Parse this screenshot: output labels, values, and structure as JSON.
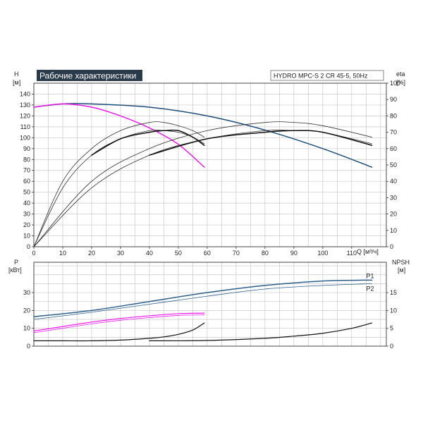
{
  "title": "Рабочие характеристики",
  "model": "HYDRO MPC-S 2 CR 45-5, 50Hz",
  "colors": {
    "head": "#1f4e79",
    "eff": "#333333",
    "power": "#2e5f8a",
    "magenta": "#e81ee8",
    "npsh": "#111111",
    "title_bg": "#2b3a4a"
  },
  "chart_data": [
    {
      "type": "line",
      "name": "top",
      "xlabel": "Q [м³/ч]",
      "ylabel": "H [м]",
      "y2label": "eta [%]",
      "left_unit_label": "H",
      "left_unit_sub": "[м]",
      "right_unit_label": "eta",
      "right_unit_sub": "[%]",
      "x_axis_label": "Q [м³/ч]",
      "xlim": [
        0,
        122
      ],
      "ylim": [
        0,
        150
      ],
      "y2lim": [
        0,
        100
      ],
      "xticks": [
        0,
        10,
        20,
        30,
        40,
        50,
        60,
        70,
        80,
        90,
        100,
        110
      ],
      "yticks": [
        0,
        10,
        20,
        30,
        40,
        50,
        60,
        70,
        80,
        90,
        100,
        110,
        120,
        130,
        140
      ],
      "y2ticks": [
        0,
        10,
        20,
        30,
        40,
        50,
        60,
        70,
        80,
        90,
        100
      ],
      "grid": true,
      "series": [
        {
          "key": "head2",
          "axis": "left",
          "color": "#1f4e79",
          "width": 1.5,
          "x": [
            0,
            10,
            20,
            40,
            60,
            80,
            100,
            117
          ],
          "y": [
            128,
            131,
            131,
            128,
            120,
            107,
            90,
            73
          ]
        },
        {
          "key": "head1",
          "axis": "left",
          "color": "#e81ee8",
          "width": 1.5,
          "x": [
            0,
            10,
            20,
            30,
            40,
            50,
            59
          ],
          "y": [
            128,
            131,
            128,
            120,
            109,
            94,
            73
          ]
        },
        {
          "key": "eff1a",
          "axis": "right",
          "color": "#333333",
          "width": 0.8,
          "x": [
            0,
            10,
            20,
            30,
            40,
            45,
            50,
            55,
            59
          ],
          "y": [
            0,
            40,
            60,
            71,
            76,
            76,
            74,
            71,
            67
          ]
        },
        {
          "key": "eff1b",
          "axis": "right",
          "color": "#333333",
          "width": 0.8,
          "x": [
            0,
            10,
            20,
            30,
            40,
            45,
            50,
            55,
            59
          ],
          "y": [
            0,
            36,
            56,
            66,
            71,
            71,
            70,
            67,
            63
          ]
        },
        {
          "key": "eff1c",
          "axis": "right",
          "color": "#111111",
          "width": 1.5,
          "x": [
            20,
            30,
            40,
            45,
            50,
            55,
            59
          ],
          "y": [
            56,
            66,
            70,
            71,
            71,
            67,
            62
          ]
        },
        {
          "key": "eff2a",
          "axis": "right",
          "color": "#333333",
          "width": 0.8,
          "x": [
            0,
            20,
            40,
            60,
            80,
            90,
            100,
            117
          ],
          "y": [
            0,
            40,
            60,
            71,
            76,
            76,
            74,
            67
          ]
        },
        {
          "key": "eff2b",
          "axis": "right",
          "color": "#333333",
          "width": 0.8,
          "x": [
            0,
            20,
            40,
            60,
            80,
            90,
            100,
            117
          ],
          "y": [
            0,
            36,
            56,
            66,
            71,
            71,
            70,
            63
          ]
        },
        {
          "key": "eff2c",
          "axis": "right",
          "color": "#111111",
          "width": 1.5,
          "x": [
            40,
            60,
            80,
            90,
            100,
            117
          ],
          "y": [
            56,
            66,
            70,
            71,
            70,
            62
          ]
        }
      ]
    },
    {
      "type": "line",
      "name": "bottom",
      "left_unit_label": "P",
      "left_unit_sub": "[кВт]",
      "right_unit_label": "NPSH",
      "right_unit_sub": "[м]",
      "xlim": [
        0,
        122
      ],
      "ylim": [
        0,
        47
      ],
      "y2lim": [
        0,
        23.5
      ],
      "yticks": [
        0,
        10,
        20,
        30
      ],
      "y2ticks": [
        0,
        5,
        10,
        15
      ],
      "grid": true,
      "series": [
        {
          "key": "p1",
          "axis": "left",
          "color": "#2e5f8a",
          "width": 1.5,
          "label": "P1",
          "x": [
            0,
            20,
            40,
            60,
            80,
            100,
            117
          ],
          "y": [
            16.5,
            20,
            25,
            30,
            34,
            36.5,
            37
          ]
        },
        {
          "key": "p2",
          "axis": "left",
          "color": "#2e5f8a",
          "width": 0.8,
          "label": "P2",
          "x": [
            0,
            20,
            40,
            60,
            80,
            100,
            117
          ],
          "y": [
            15,
            19,
            23.5,
            28,
            32,
            34,
            35
          ]
        },
        {
          "key": "pm1",
          "axis": "left",
          "color": "#e81ee8",
          "width": 1.2,
          "x": [
            0,
            10,
            20,
            30,
            40,
            50,
            59
          ],
          "y": [
            8.5,
            11,
            13.5,
            15.5,
            17,
            18.2,
            18.5
          ]
        },
        {
          "key": "pm2",
          "axis": "left",
          "color": "#e81ee8",
          "width": 0.8,
          "x": [
            0,
            10,
            20,
            30,
            40,
            50,
            59
          ],
          "y": [
            7.5,
            10,
            12.5,
            14.5,
            16,
            17.2,
            17.5
          ]
        },
        {
          "key": "npsh1",
          "axis": "right",
          "color": "#111111",
          "width": 1.2,
          "x": [
            0,
            10,
            20,
            30,
            40,
            45,
            50,
            55,
            59
          ],
          "y": [
            1.5,
            1.5,
            1.5,
            1.7,
            2.2,
            2.6,
            3.3,
            4.5,
            6.5
          ]
        },
        {
          "key": "npsh2",
          "axis": "right",
          "color": "#111111",
          "width": 1.2,
          "x": [
            40,
            60,
            80,
            90,
            100,
            110,
            117
          ],
          "y": [
            1.5,
            1.6,
            2.2,
            2.8,
            3.6,
            5,
            6.5
          ]
        }
      ]
    }
  ]
}
